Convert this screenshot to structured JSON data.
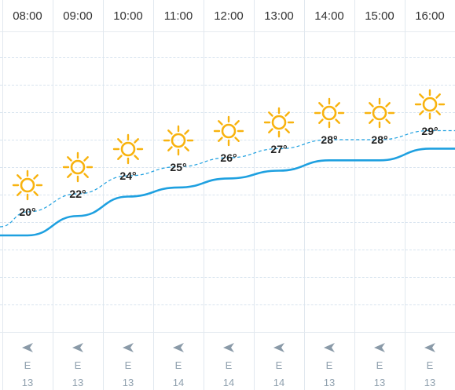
{
  "forecast": {
    "hours": [
      {
        "time": "08:00",
        "temp_label": "20°",
        "temp": 20,
        "feels_like": 19,
        "icon": "sun-icon",
        "wind_dir": "E",
        "wind_speed": "13"
      },
      {
        "time": "09:00",
        "temp_label": "22°",
        "temp": 22,
        "feels_like": 20.5,
        "icon": "sun-icon",
        "wind_dir": "E",
        "wind_speed": "13"
      },
      {
        "time": "10:00",
        "temp_label": "24°",
        "temp": 24,
        "feels_like": 22,
        "icon": "sun-icon",
        "wind_dir": "E",
        "wind_speed": "13"
      },
      {
        "time": "11:00",
        "temp_label": "25°",
        "temp": 25,
        "feels_like": 22.7,
        "icon": "sun-icon",
        "wind_dir": "E",
        "wind_speed": "14"
      },
      {
        "time": "12:00",
        "temp_label": "26°",
        "temp": 26,
        "feels_like": 23.4,
        "icon": "sun-icon",
        "wind_dir": "E",
        "wind_speed": "14"
      },
      {
        "time": "13:00",
        "temp_label": "27°",
        "temp": 27,
        "feels_like": 24,
        "icon": "sun-icon",
        "wind_dir": "E",
        "wind_speed": "14"
      },
      {
        "time": "14:00",
        "temp_label": "28°",
        "temp": 28,
        "feels_like": 24.8,
        "icon": "sun-icon",
        "wind_dir": "E",
        "wind_speed": "13"
      },
      {
        "time": "15:00",
        "temp_label": "28°",
        "temp": 28,
        "feels_like": 24.8,
        "icon": "sun-icon",
        "wind_dir": "E",
        "wind_speed": "13"
      },
      {
        "time": "16:00",
        "temp_label": "29°",
        "temp": 29,
        "feels_like": 25.7,
        "icon": "sun-icon",
        "wind_dir": "E",
        "wind_speed": "13"
      }
    ],
    "wind_arrow_icon": "wind-arrow-left-icon"
  },
  "colors": {
    "sun": "#F8B30F",
    "temp_line": "#1EA0E0",
    "feels_line": "#1EA0E0",
    "grid": "#D8E4EF"
  }
}
